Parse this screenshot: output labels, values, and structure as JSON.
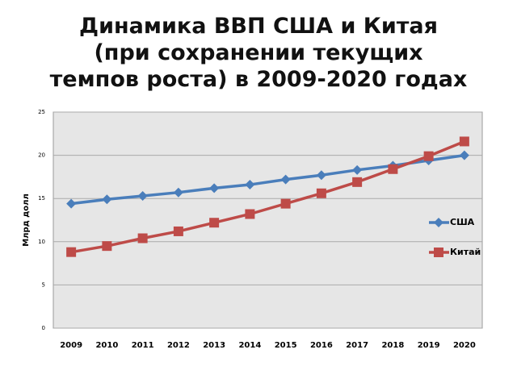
{
  "chart_data": {
    "type": "line",
    "title": "Динамика ВВП США и Китая (при сохранении текущих темпов роста) в 2009-2020 годах",
    "y_label": "Млрд долл",
    "categories": [
      "2009",
      "2010",
      "2011",
      "2012",
      "2013",
      "2014",
      "2015",
      "2016",
      "2017",
      "2018",
      "2019",
      "2020"
    ],
    "series": [
      {
        "name": "США",
        "color": "#4a7ebb",
        "marker": "diamond",
        "values": [
          14.4,
          14.9,
          15.3,
          15.7,
          16.2,
          16.6,
          17.2,
          17.7,
          18.3,
          18.8,
          19.4,
          20.0
        ]
      },
      {
        "name": "Китай",
        "color": "#be4b48",
        "marker": "square",
        "values": [
          8.8,
          9.5,
          10.4,
          11.2,
          12.2,
          13.2,
          14.4,
          15.6,
          16.9,
          18.4,
          19.9,
          21.6
        ]
      }
    ],
    "ylim": [
      0,
      25
    ],
    "yticks": [
      0,
      5,
      10,
      15,
      20,
      25
    ],
    "grid": true,
    "legend": "right"
  }
}
